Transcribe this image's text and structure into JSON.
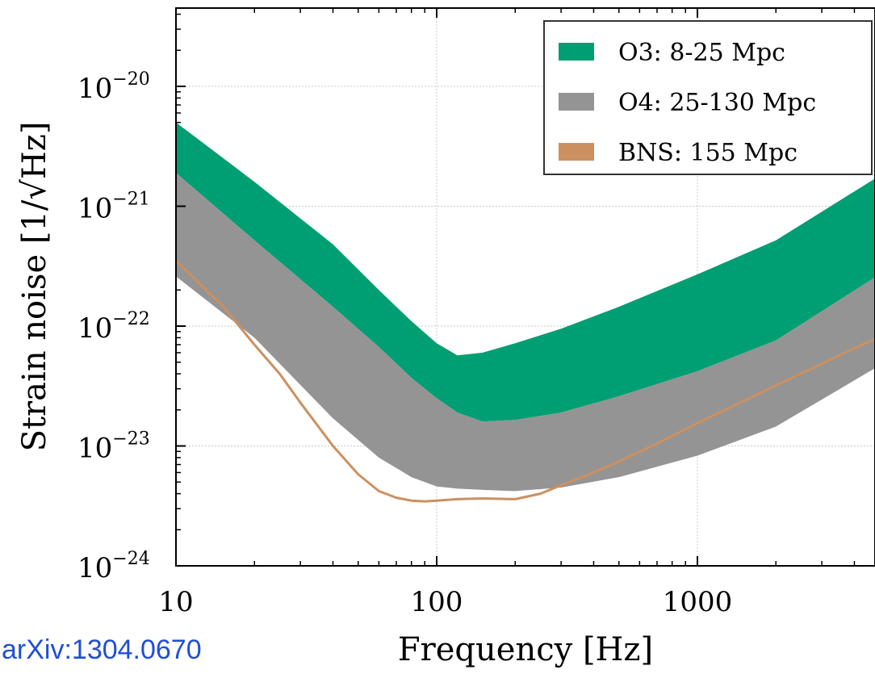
{
  "chart_data": {
    "type": "area",
    "title": "",
    "xlabel": "Frequency [Hz]",
    "ylabel": "Strain noise [1/√Hz]",
    "x_scale": "log",
    "y_scale": "log",
    "xlim": [
      10,
      5000
    ],
    "ylim": [
      1e-24,
      5e-20
    ],
    "x_ticks": [
      {
        "value": 10,
        "label": "10"
      },
      {
        "value": 100,
        "label": "100"
      },
      {
        "value": 1000,
        "label": "1000"
      }
    ],
    "y_ticks": [
      {
        "value": 1e-24,
        "base": "10",
        "exp": "−24"
      },
      {
        "value": 1e-23,
        "base": "10",
        "exp": "−23"
      },
      {
        "value": 1e-22,
        "base": "10",
        "exp": "−22"
      },
      {
        "value": 1e-21,
        "base": "10",
        "exp": "−21"
      },
      {
        "value": 1e-20,
        "base": "10",
        "exp": "−20"
      }
    ],
    "grid": true,
    "legend_position": "top-right",
    "series": [
      {
        "name": "O3: 8-25 Mpc",
        "kind": "band",
        "color": "#009e73",
        "x": [
          10,
          20,
          40,
          60,
          80,
          100,
          120,
          150,
          200,
          300,
          500,
          1000,
          2000,
          5000
        ],
        "upper": [
          5e-21,
          1.6e-21,
          4.8e-22,
          2e-22,
          1.1e-22,
          7.2e-23,
          5.7e-23,
          6e-23,
          7.2e-23,
          9.5e-23,
          1.45e-22,
          2.7e-22,
          5.2e-22,
          1.8e-21
        ],
        "lower": [
          1.9e-21,
          5.2e-22,
          1.45e-22,
          6.7e-23,
          3.7e-23,
          2.5e-23,
          1.9e-23,
          1.6e-23,
          1.65e-23,
          1.9e-23,
          2.6e-23,
          4.2e-23,
          7.6e-23,
          2.7e-22
        ]
      },
      {
        "name": "O4: 25-130 Mpc",
        "kind": "band",
        "color": "#949494",
        "x": [
          10,
          20,
          40,
          60,
          80,
          100,
          120,
          150,
          200,
          300,
          500,
          1000,
          2000,
          5000
        ],
        "upper": [
          1.9e-21,
          5.2e-22,
          1.45e-22,
          6.7e-23,
          3.7e-23,
          2.5e-23,
          1.9e-23,
          1.6e-23,
          1.65e-23,
          1.9e-23,
          2.6e-23,
          4.2e-23,
          7.6e-23,
          2.7e-22
        ],
        "lower": [
          2.6e-22,
          8e-23,
          1.7e-23,
          8e-24,
          5.5e-24,
          4.6e-24,
          4.4e-24,
          4.3e-24,
          4.2e-24,
          4.5e-24,
          5.5e-24,
          8.3e-24,
          1.45e-23,
          4.7e-23
        ]
      },
      {
        "name": "BNS: 155 Mpc",
        "kind": "line",
        "color": "#cc9060",
        "x": [
          10,
          15,
          20,
          25,
          30,
          40,
          50,
          60,
          70,
          80,
          90,
          100,
          120,
          150,
          200,
          250,
          300,
          400,
          500,
          700,
          1000,
          2000,
          5000
        ],
        "y": [
          3.5e-22,
          1.5e-22,
          7e-23,
          4e-23,
          2.3e-23,
          1e-23,
          5.8e-24,
          4.2e-24,
          3.7e-24,
          3.5e-24,
          3.45e-24,
          3.5e-24,
          3.6e-24,
          3.65e-24,
          3.6e-24,
          4e-24,
          4.7e-24,
          6e-24,
          7.4e-24,
          1.05e-23,
          1.55e-23,
          3.2e-23,
          8.2e-23
        ]
      }
    ]
  },
  "annotation": {
    "citation": "arXiv:1304.0670"
  }
}
